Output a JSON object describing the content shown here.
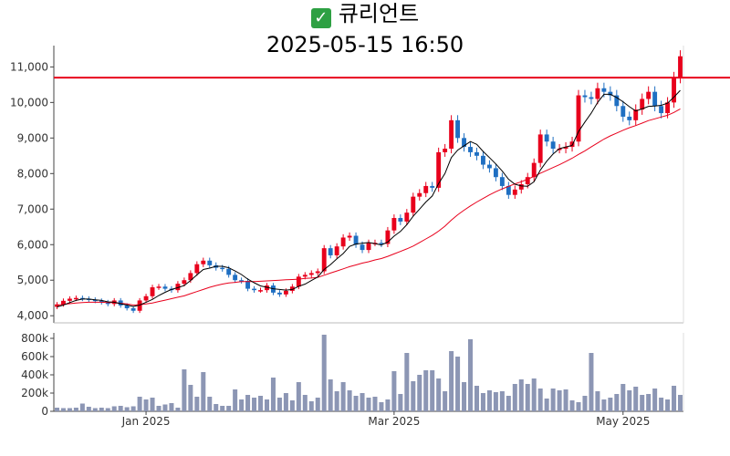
{
  "header": {
    "name": "큐리언트",
    "datetime": "2025-05-15 16:50",
    "check_icon": "check-mark-icon"
  },
  "colors": {
    "up": "#e8001c",
    "down": "#1f6fc2",
    "ma_short": "#000000",
    "ma_long": "#e8001c",
    "resistance": "#e8001c",
    "volume": "#8c96b4"
  },
  "chart_data": [
    {
      "type": "candlestick",
      "title": "",
      "ylim": [
        3800,
        11600
      ],
      "y_ticks": [
        4000,
        5000,
        6000,
        7000,
        8000,
        9000,
        10000,
        11000
      ],
      "y_tick_labels": [
        "4,000",
        "5,000",
        "6,000",
        "7,000",
        "8,000",
        "9,000",
        "10,000",
        "11,000"
      ],
      "horizontal_line": 10700,
      "close": [
        4320,
        4420,
        4480,
        4500,
        4480,
        4450,
        4420,
        4380,
        4330,
        4430,
        4290,
        4210,
        4140,
        4430,
        4550,
        4800,
        4820,
        4760,
        4720,
        4900,
        5000,
        5200,
        5450,
        5550,
        5420,
        5350,
        5320,
        5150,
        5000,
        4980,
        4760,
        4720,
        4720,
        4850,
        4650,
        4600,
        4700,
        4820,
        5100,
        5150,
        5200,
        5250,
        5900,
        5700,
        5950,
        6200,
        6250,
        6000,
        5850,
        6050,
        6050,
        6020,
        6400,
        6750,
        6650,
        6900,
        7350,
        7450,
        7650,
        7600,
        8600,
        8700,
        9500,
        9000,
        8750,
        8600,
        8500,
        8250,
        8150,
        7900,
        7650,
        7400,
        7550,
        7700,
        7900,
        8300,
        9100,
        8900,
        8700,
        8700,
        8750,
        8900,
        10200,
        10150,
        10100,
        10400,
        10300,
        10200,
        9900,
        9600,
        9500,
        9800,
        10100,
        10300,
        9900,
        9700,
        10000,
        10700,
        11300
      ],
      "ma_short": [
        4250,
        4300,
        4370,
        4430,
        4470,
        4470,
        4450,
        4430,
        4390,
        4380,
        4340,
        4300,
        4260,
        4300,
        4380,
        4460,
        4570,
        4660,
        4740,
        4790,
        4850,
        4990,
        5150,
        5300,
        5340,
        5390,
        5390,
        5350,
        5260,
        5160,
        5030,
        4930,
        4840,
        4800,
        4760,
        4740,
        4720,
        4740,
        4830,
        4890,
        4990,
        5090,
        5300,
        5440,
        5600,
        5750,
        5950,
        6020,
        6040,
        6060,
        6030,
        5990,
        6070,
        6240,
        6370,
        6560,
        6800,
        7000,
        7200,
        7370,
        7720,
        8000,
        8450,
        8660,
        8780,
        8900,
        8820,
        8620,
        8450,
        8270,
        8070,
        7840,
        7700,
        7650,
        7640,
        7770,
        8100,
        8350,
        8550,
        8700,
        8750,
        8790,
        9180,
        9450,
        9700,
        10000,
        10230,
        10230,
        10140,
        10020,
        9880,
        9760,
        9820,
        9890,
        9900,
        9920,
        9980,
        10150,
        10340
      ],
      "ma_long": [
        4300,
        4320,
        4340,
        4360,
        4370,
        4380,
        4380,
        4380,
        4370,
        4370,
        4350,
        4330,
        4300,
        4310,
        4330,
        4360,
        4400,
        4440,
        4480,
        4520,
        4560,
        4620,
        4680,
        4740,
        4800,
        4850,
        4890,
        4920,
        4940,
        4960,
        4960,
        4960,
        4970,
        4980,
        4990,
        5000,
        5010,
        5020,
        5030,
        5050,
        5060,
        5080,
        5140,
        5200,
        5260,
        5320,
        5380,
        5430,
        5480,
        5520,
        5570,
        5610,
        5670,
        5740,
        5810,
        5880,
        5960,
        6060,
        6160,
        6260,
        6380,
        6520,
        6690,
        6840,
        6970,
        7090,
        7200,
        7300,
        7400,
        7490,
        7570,
        7640,
        7710,
        7770,
        7840,
        7920,
        8010,
        8090,
        8170,
        8250,
        8340,
        8430,
        8540,
        8640,
        8750,
        8860,
        8970,
        9060,
        9140,
        9220,
        9290,
        9350,
        9420,
        9490,
        9540,
        9590,
        9640,
        9720,
        9820
      ]
    },
    {
      "type": "bar",
      "title": "",
      "x_tick_labels": [
        "Jan 2025",
        "Mar 2025",
        "May 2025"
      ],
      "x_tick_index": [
        14,
        53,
        89
      ],
      "ylim": [
        0,
        860000
      ],
      "y_ticks": [
        0,
        200000,
        400000,
        600000,
        800000
      ],
      "y_tick_labels": [
        "0",
        "200k",
        "400k",
        "600k",
        "800k"
      ],
      "values": [
        40000,
        35000,
        35000,
        40000,
        85000,
        50000,
        35000,
        40000,
        35000,
        55000,
        60000,
        45000,
        55000,
        160000,
        130000,
        150000,
        60000,
        75000,
        90000,
        40000,
        460000,
        290000,
        160000,
        430000,
        160000,
        80000,
        60000,
        60000,
        240000,
        130000,
        180000,
        150000,
        170000,
        130000,
        370000,
        150000,
        200000,
        120000,
        320000,
        180000,
        110000,
        150000,
        840000,
        350000,
        220000,
        320000,
        230000,
        170000,
        200000,
        150000,
        160000,
        100000,
        130000,
        440000,
        190000,
        640000,
        330000,
        400000,
        450000,
        450000,
        360000,
        220000,
        660000,
        600000,
        320000,
        790000,
        280000,
        200000,
        230000,
        210000,
        220000,
        170000,
        300000,
        350000,
        300000,
        360000,
        250000,
        140000,
        250000,
        230000,
        240000,
        120000,
        100000,
        170000,
        640000,
        220000,
        130000,
        150000,
        190000,
        300000,
        230000,
        270000,
        180000,
        190000,
        250000,
        150000,
        130000,
        280000,
        180000
      ]
    }
  ]
}
